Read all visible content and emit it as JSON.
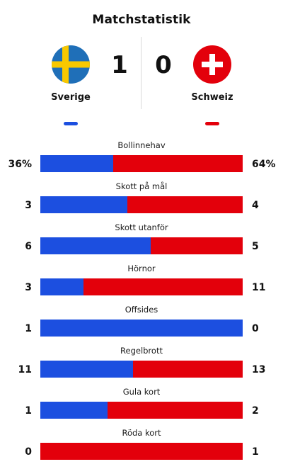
{
  "title": "Matchstatistik",
  "colors": {
    "home": "#1c4fe0",
    "away": "#e3000b"
  },
  "home": {
    "name": "Sverige",
    "score": "1",
    "flag_icon": "sweden-flag-icon"
  },
  "away": {
    "name": "Schweiz",
    "score": "0",
    "flag_icon": "switzerland-flag-icon"
  },
  "stats": [
    {
      "label": "Bollinnehav",
      "home": "36%",
      "away": "64%",
      "home_share": 0.36
    },
    {
      "label": "Skott på mål",
      "home": "3",
      "away": "4",
      "home_share": 0.4286
    },
    {
      "label": "Skott utanför",
      "home": "6",
      "away": "5",
      "home_share": 0.5455
    },
    {
      "label": "Hörnor",
      "home": "3",
      "away": "11",
      "home_share": 0.2143
    },
    {
      "label": "Offsides",
      "home": "1",
      "away": "0",
      "home_share": 1.0
    },
    {
      "label": "Regelbrott",
      "home": "11",
      "away": "13",
      "home_share": 0.4583
    },
    {
      "label": "Gula kort",
      "home": "1",
      "away": "2",
      "home_share": 0.3333
    },
    {
      "label": "Röda kort",
      "home": "0",
      "away": "1",
      "home_share": 0.0
    }
  ]
}
